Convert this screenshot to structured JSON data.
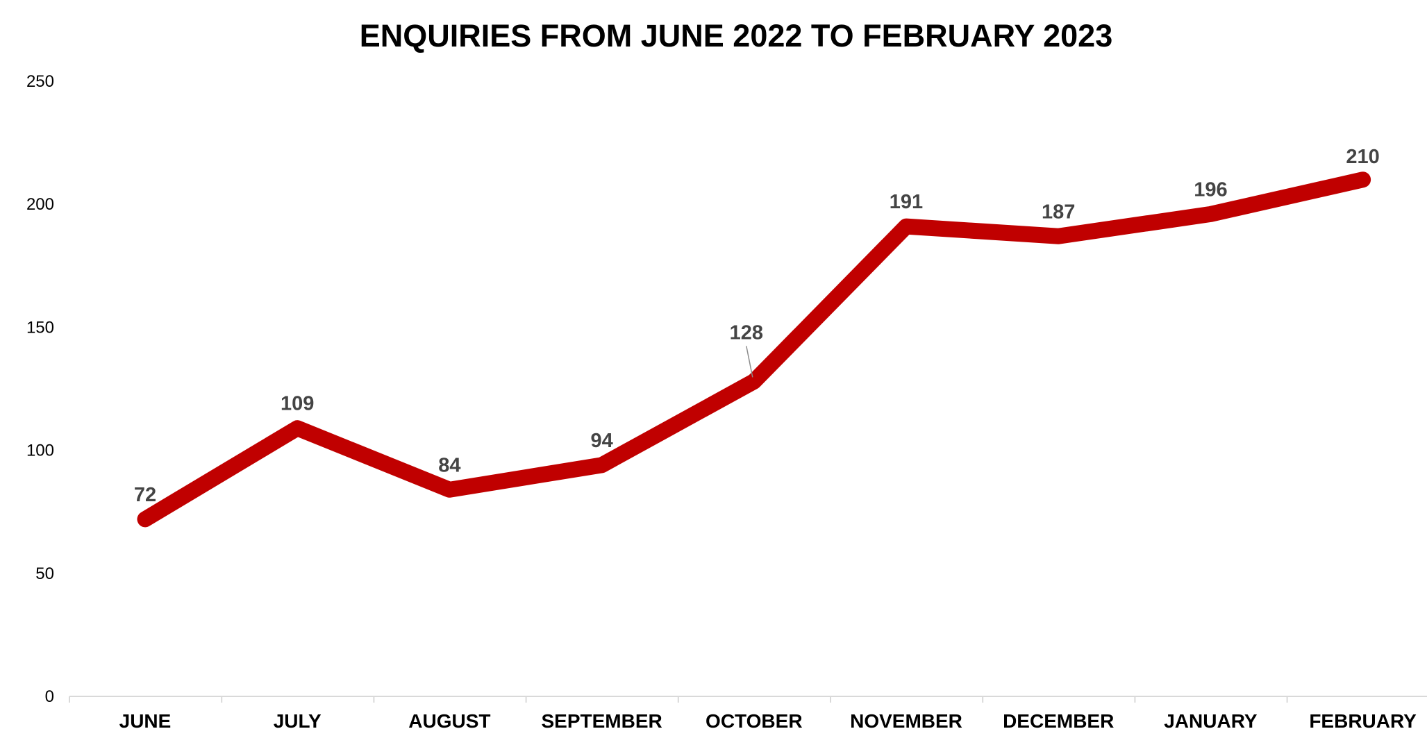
{
  "chart_data": {
    "type": "line",
    "title": "ENQUIRIES FROM JUNE 2022 TO FEBRUARY 2023",
    "xlabel": "",
    "ylabel": "",
    "categories": [
      "JUNE",
      "JULY",
      "AUGUST",
      "SEPTEMBER",
      "OCTOBER",
      "NOVEMBER",
      "DECEMBER",
      "JANUARY",
      "FEBRUARY"
    ],
    "series": [
      {
        "values": [
          72,
          109,
          84,
          94,
          128,
          191,
          187,
          196,
          210
        ],
        "color": "#c00000"
      }
    ],
    "ylim": [
      0,
      250
    ],
    "yticks": [
      0,
      50,
      100,
      150,
      200,
      250
    ],
    "grid": false,
    "legend": "none",
    "data_labels": true
  }
}
